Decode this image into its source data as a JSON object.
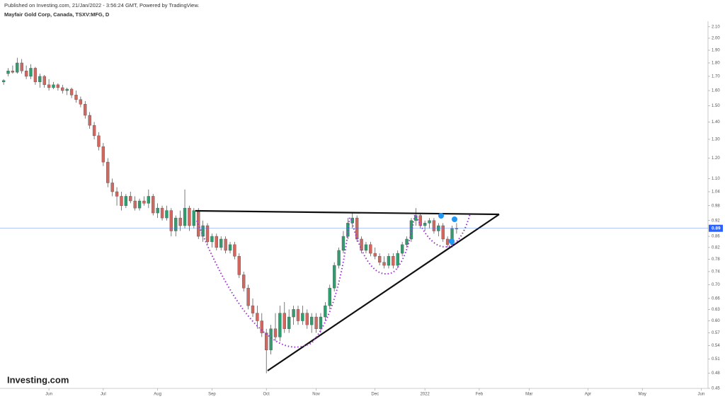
{
  "chart_data": {
    "type": "candlestick",
    "subtitle": "Published on Investing.com, 21/Jan/2022 - 3:56:24 GMT, Powered by TradingView.",
    "title": "Mayfair Gold Corp, Canada, TSXV:MFG, D",
    "source": "Investing.com",
    "log_scale": true,
    "up_color": "#2f9e6e",
    "down_color": "#d2675f",
    "last_price": 0.89,
    "last_price_color": "#2962ff",
    "categories": [
      null,
      null,
      null,
      null,
      null,
      null,
      null,
      null,
      null,
      null,
      null,
      null,
      null,
      null,
      null,
      null,
      null,
      null,
      null,
      null,
      null,
      null,
      null,
      null,
      null,
      null,
      null,
      null,
      null,
      null,
      null,
      null,
      null,
      null,
      null,
      null,
      null,
      null,
      null,
      null,
      null,
      null,
      null,
      null,
      null,
      null,
      null,
      null,
      null,
      null,
      null,
      null,
      null,
      null,
      null,
      null,
      null,
      null,
      null,
      null,
      null,
      null,
      null,
      null,
      null,
      null,
      null,
      null,
      null,
      null,
      null,
      null,
      null,
      null,
      null,
      null,
      null,
      null,
      null,
      null,
      null,
      null,
      null,
      null,
      null,
      null,
      null,
      null,
      null,
      null,
      null,
      null,
      null,
      null,
      null,
      null,
      null,
      null,
      null,
      null,
      null
    ],
    "open": [
      1.66,
      1.72,
      1.74,
      1.73,
      1.8,
      1.74,
      1.7,
      1.76,
      1.66,
      1.7,
      1.64,
      1.62,
      1.64,
      1.62,
      1.6,
      1.61,
      1.57,
      1.54,
      1.51,
      1.44,
      1.38,
      1.32,
      1.26,
      1.18,
      1.08,
      1.04,
      1.02,
      0.98,
      1.02,
      1.0,
      0.97,
      1.0,
      0.99,
      1.02,
      0.95,
      0.97,
      0.93,
      0.96,
      0.88,
      0.93,
      0.9,
      0.97,
      0.9,
      0.96,
      0.86,
      0.9,
      0.84,
      0.86,
      0.82,
      0.85,
      0.81,
      0.83,
      0.79,
      0.73,
      0.69,
      0.64,
      0.62,
      0.6,
      0.57,
      0.53,
      0.58,
      0.56,
      0.62,
      0.58,
      0.61,
      0.63,
      0.6,
      0.62,
      0.59,
      0.61,
      0.58,
      0.61,
      0.64,
      0.69,
      0.76,
      0.81,
      0.86,
      0.91,
      0.93,
      0.85,
      0.81,
      0.83,
      0.8,
      0.79,
      0.77,
      0.76,
      0.79,
      0.76,
      0.8,
      0.83,
      0.85,
      0.92,
      0.94,
      0.9,
      0.91,
      0.92,
      0.88,
      0.9,
      0.85,
      0.83,
      0.89
    ],
    "high": [
      1.68,
      1.76,
      1.78,
      1.84,
      1.83,
      1.78,
      1.79,
      1.77,
      1.72,
      1.71,
      1.68,
      1.66,
      1.65,
      1.64,
      1.62,
      1.62,
      1.6,
      1.56,
      1.53,
      1.46,
      1.4,
      1.34,
      1.28,
      1.2,
      1.1,
      1.06,
      1.04,
      1.03,
      1.04,
      1.02,
      1.01,
      1.02,
      1.05,
      1.03,
      0.99,
      0.98,
      0.98,
      0.97,
      0.94,
      0.96,
      1.05,
      0.98,
      0.97,
      0.97,
      0.92,
      0.91,
      0.87,
      0.87,
      0.86,
      0.86,
      0.84,
      0.84,
      0.8,
      0.74,
      0.7,
      0.66,
      0.64,
      0.62,
      0.58,
      0.59,
      0.62,
      0.64,
      0.65,
      0.63,
      0.64,
      0.64,
      0.64,
      0.63,
      0.62,
      0.62,
      0.62,
      0.65,
      0.7,
      0.77,
      0.82,
      0.88,
      0.93,
      0.95,
      0.94,
      0.86,
      0.84,
      0.84,
      0.82,
      0.8,
      0.79,
      0.8,
      0.8,
      0.81,
      0.84,
      0.86,
      0.93,
      0.97,
      0.95,
      0.92,
      0.93,
      0.93,
      0.91,
      0.91,
      0.86,
      0.9,
      0.91
    ],
    "low": [
      1.64,
      1.7,
      1.72,
      1.72,
      1.72,
      1.68,
      1.68,
      1.64,
      1.62,
      1.62,
      1.6,
      1.61,
      1.6,
      1.58,
      1.57,
      1.55,
      1.52,
      1.49,
      1.42,
      1.36,
      1.3,
      1.24,
      1.16,
      1.06,
      1.02,
      0.98,
      0.96,
      0.97,
      0.99,
      0.96,
      0.96,
      0.98,
      0.97,
      0.94,
      0.93,
      0.92,
      0.92,
      0.86,
      0.86,
      0.88,
      0.89,
      0.88,
      0.89,
      0.85,
      0.84,
      0.83,
      0.82,
      0.81,
      0.81,
      0.8,
      0.8,
      0.78,
      0.72,
      0.68,
      0.63,
      0.61,
      0.58,
      0.56,
      0.48,
      0.52,
      0.55,
      0.55,
      0.57,
      0.57,
      0.59,
      0.59,
      0.59,
      0.58,
      0.57,
      0.57,
      0.57,
      0.6,
      0.63,
      0.68,
      0.75,
      0.8,
      0.85,
      0.89,
      0.84,
      0.8,
      0.8,
      0.79,
      0.78,
      0.76,
      0.75,
      0.75,
      0.75,
      0.75,
      0.79,
      0.82,
      0.84,
      0.9,
      0.89,
      0.88,
      0.89,
      0.87,
      0.86,
      0.84,
      0.82,
      0.82,
      0.87
    ],
    "close": [
      1.67,
      1.74,
      1.73,
      1.8,
      1.74,
      1.7,
      1.76,
      1.66,
      1.7,
      1.64,
      1.62,
      1.64,
      1.62,
      1.6,
      1.61,
      1.57,
      1.54,
      1.51,
      1.44,
      1.38,
      1.32,
      1.26,
      1.18,
      1.08,
      1.04,
      1.02,
      0.98,
      1.02,
      1.0,
      0.97,
      1.0,
      0.99,
      1.02,
      0.95,
      0.97,
      0.93,
      0.96,
      0.88,
      0.93,
      0.9,
      0.97,
      0.9,
      0.96,
      0.86,
      0.9,
      0.84,
      0.86,
      0.82,
      0.85,
      0.81,
      0.83,
      0.79,
      0.73,
      0.69,
      0.64,
      0.62,
      0.6,
      0.57,
      0.53,
      0.58,
      0.56,
      0.62,
      0.58,
      0.61,
      0.63,
      0.6,
      0.62,
      0.59,
      0.61,
      0.58,
      0.61,
      0.64,
      0.69,
      0.76,
      0.81,
      0.86,
      0.91,
      0.93,
      0.85,
      0.81,
      0.83,
      0.8,
      0.79,
      0.77,
      0.76,
      0.79,
      0.76,
      0.8,
      0.83,
      0.85,
      0.92,
      0.94,
      0.9,
      0.91,
      0.92,
      0.88,
      0.9,
      0.85,
      0.83,
      0.89,
      0.89
    ],
    "xlim": [
      -0.8,
      155.5
    ],
    "xticks": [
      {
        "value": 10,
        "label": "Jun"
      },
      {
        "value": 22,
        "label": "Jul"
      },
      {
        "value": 34,
        "label": "Aug"
      },
      {
        "value": 46,
        "label": "Sep"
      },
      {
        "value": 58,
        "label": "Oct"
      },
      {
        "value": 69,
        "label": "Nov"
      },
      {
        "value": 82,
        "label": "Dec"
      },
      {
        "value": 93,
        "label": "2022"
      },
      {
        "value": 105,
        "label": "Feb"
      },
      {
        "value": 116,
        "label": "Mar"
      },
      {
        "value": 129,
        "label": "Apr"
      },
      {
        "value": 141,
        "label": "May"
      },
      {
        "value": 154,
        "label": "Jun"
      }
    ],
    "ylim": [
      0.45,
      2.15
    ],
    "yticks": [
      {
        "value": 2.1,
        "label": "2.10"
      },
      {
        "value": 2.0,
        "label": "2.00"
      },
      {
        "value": 1.9,
        "label": "1.90"
      },
      {
        "value": 1.8,
        "label": "1.80"
      },
      {
        "value": 1.7,
        "label": "1.70"
      },
      {
        "value": 1.6,
        "label": "1.60"
      },
      {
        "value": 1.5,
        "label": "1.50"
      },
      {
        "value": 1.4,
        "label": "1.40"
      },
      {
        "value": 1.3,
        "label": "1.30"
      },
      {
        "value": 1.2,
        "label": "1.20"
      },
      {
        "value": 1.1,
        "label": "1.10"
      },
      1.04,
      0.98,
      0.92,
      0.86,
      0.82,
      0.78,
      0.74,
      {
        "value": 0.7,
        "label": "0.70"
      },
      0.66,
      0.63,
      {
        "value": 0.6,
        "label": "0.60"
      },
      0.57,
      0.54,
      0.51,
      0.48,
      0.45
    ]
  }
}
